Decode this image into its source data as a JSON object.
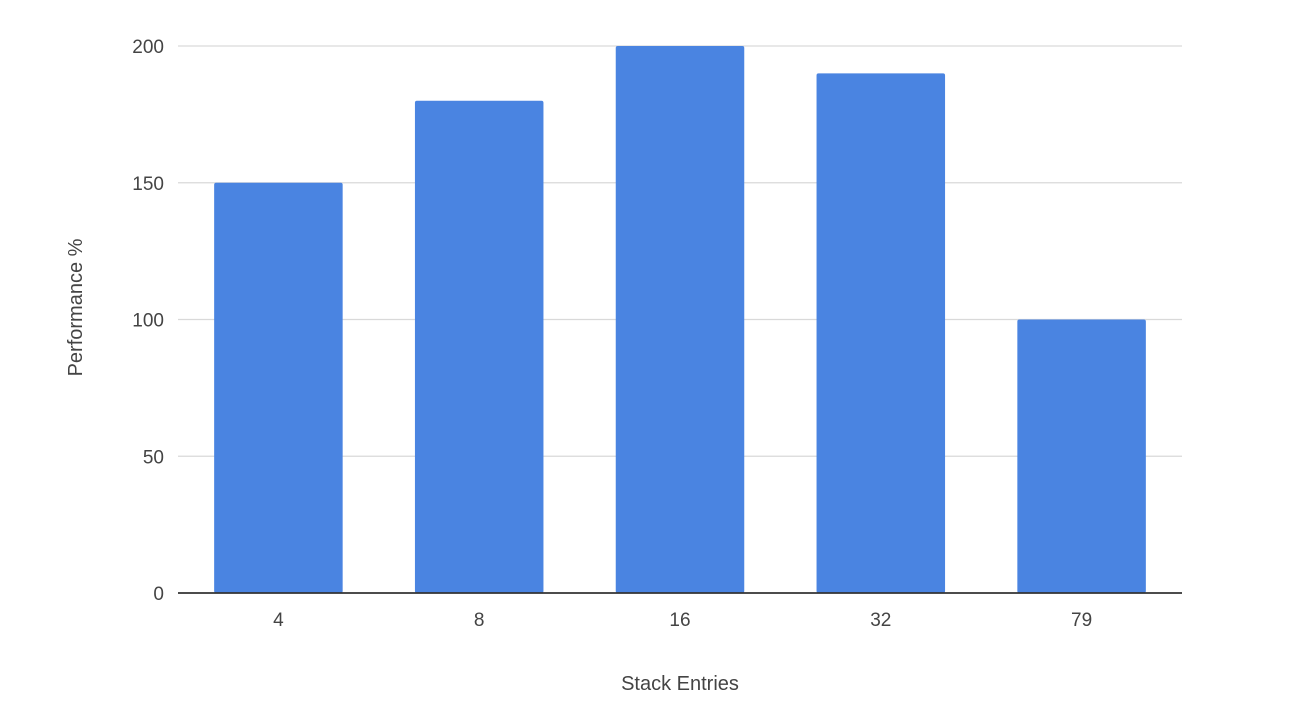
{
  "chart_data": {
    "type": "bar",
    "categories": [
      "4",
      "8",
      "16",
      "32",
      "79"
    ],
    "values": [
      150,
      180,
      200,
      190,
      100
    ],
    "title": "",
    "xlabel": "Stack Entries",
    "ylabel": "Performance %",
    "ylim": [
      0,
      200
    ],
    "yticks": [
      0,
      50,
      100,
      150,
      200
    ],
    "grid": true,
    "legend": "none",
    "colors": {
      "bar": "#4a84e1",
      "grid": "#d9d9d9",
      "baseline": "#333333"
    }
  }
}
